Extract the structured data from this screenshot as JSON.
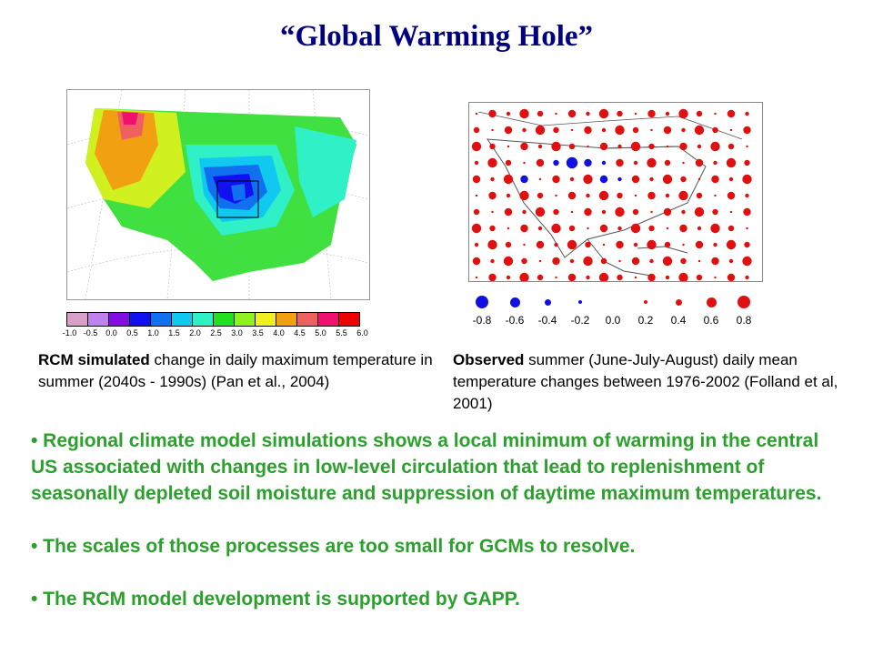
{
  "title": "“Global Warming Hole”",
  "left_figure": {
    "colorbar": {
      "labels": [
        "-1.0",
        "-0.5",
        "0.0",
        "0.5",
        "1.0",
        "1.5",
        "2.0",
        "2.5",
        "3.0",
        "3.5",
        "4.0",
        "4.5",
        "5.0",
        "5.5",
        "6.0"
      ],
      "colors": [
        "#d8a0c8",
        "#c080f0",
        "#8010e0",
        "#1010f0",
        "#1070f0",
        "#10c8f0",
        "#30f0c8",
        "#20e020",
        "#90f020",
        "#f0f020",
        "#f0a010",
        "#f06060",
        "#f01070",
        "#f00000"
      ]
    },
    "caption_bold": "RCM simulated",
    "caption_text": " change in daily maximum temperature in summer (2040s - 1990s) (Pan et al., 2004)"
  },
  "right_figure": {
    "legend": [
      {
        "label": "-0.8",
        "color": "#1010e0",
        "size": 14
      },
      {
        "label": "-0.6",
        "color": "#1010e0",
        "size": 11
      },
      {
        "label": "-0.4",
        "color": "#1010e0",
        "size": 7
      },
      {
        "label": "-0.2",
        "color": "#1010e0",
        "size": 4
      },
      {
        "label": "0.0",
        "color": "#ffffff",
        "size": 0
      },
      {
        "label": "0.2",
        "color": "#e01010",
        "size": 4
      },
      {
        "label": "0.4",
        "color": "#e01010",
        "size": 7
      },
      {
        "label": "0.6",
        "color": "#e01010",
        "size": 11
      },
      {
        "label": "0.8",
        "color": "#e01010",
        "size": 14
      }
    ],
    "caption_bold": "Observed",
    "caption_text": " summer  (June-July-August) daily mean temperature changes between 1976-2002 (Folland et al, 2001)"
  },
  "bullets": [
    "•   Regional climate model simulations shows a local minimum of warming in the central US associated with changes in low-level circulation that lead to replenishment of seasonally depleted soil moisture and suppression of daytime maximum temperatures.",
    "•  The scales of those processes are too small for GCMs to resolve.",
    "•  The RCM model development is supported by GAPP."
  ]
}
